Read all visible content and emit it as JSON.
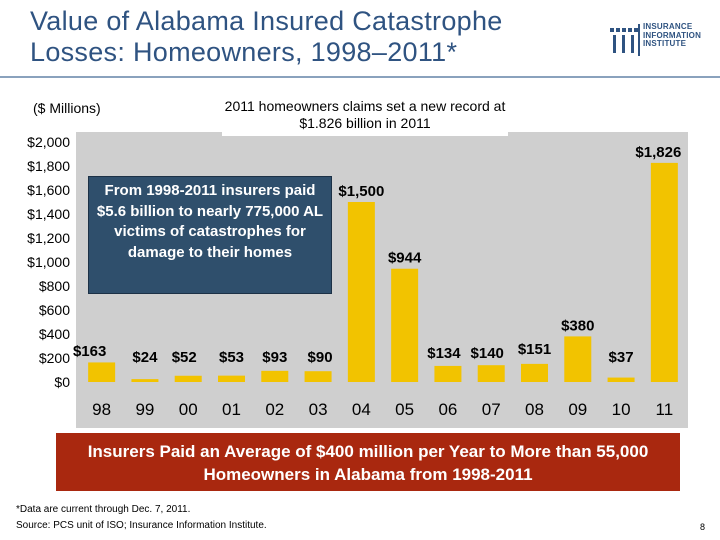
{
  "title": "Value of Alabama Insured Catastrophe Losses: Homeowners, 1998–2011*",
  "logo": {
    "name": "iii-logo",
    "lines": [
      "INSURANCE",
      "INFORMATION",
      "INSTITUTE"
    ]
  },
  "units_label": "($ Millions)",
  "callout_top": "2011 homeowners claims set a new record at $1.826 billion in 2011",
  "callout_box": "From 1998-2011 insurers paid $5.6 billion to nearly 775,000 AL victims of catastrophes for damage to their homes",
  "banner": "Insurers Paid an Average of $400 million per  Year to More than 55,000 Homeowners in Alabama from 1998-2011",
  "footnote": {
    "line1": "*Data are current through Dec. 7, 2011.",
    "line2": "Source: PCS unit of ISO; Insurance Information Institute."
  },
  "page_number": "8",
  "colors": {
    "bar": "#f2c300",
    "plot_bg": "#cfcfcf",
    "title": "#2f5381",
    "banner": "#a9280f",
    "callout": "#2f4f6c"
  },
  "chart_data": {
    "type": "bar",
    "categories": [
      "98",
      "99",
      "00",
      "01",
      "02",
      "03",
      "04",
      "05",
      "06",
      "07",
      "08",
      "09",
      "10",
      "11"
    ],
    "values": [
      163,
      24,
      52,
      53,
      93,
      90,
      1500,
      944,
      134,
      140,
      151,
      380,
      37,
      1826
    ],
    "data_labels": [
      "$163",
      "$24",
      "$52",
      "$53",
      "$93",
      "$90",
      "$1,500",
      "$944",
      "$134",
      "$140",
      "$151",
      "$380",
      "$37",
      "$1,826"
    ],
    "yticks": [
      "$0",
      "$200",
      "$400",
      "$600",
      "$800",
      "$1,000",
      "$1,200",
      "$1,400",
      "$1,600",
      "$1,800",
      "$2,000"
    ],
    "ylim": [
      0,
      2000
    ],
    "title": "",
    "xlabel": "",
    "ylabel": "($ Millions)",
    "grid": false
  }
}
